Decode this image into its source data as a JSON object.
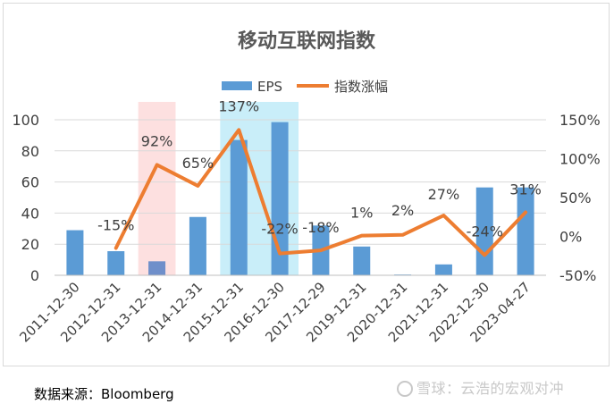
{
  "chart_data": {
    "type": "bar+line",
    "title": "移动互联网指数",
    "categories": [
      "2011-12-30",
      "2012-12-31",
      "2013-12-31",
      "2014-12-31",
      "2015-12-31",
      "2016-12-30",
      "2017-12-29",
      "2019-12-31",
      "2020-12-31",
      "2021-12-31",
      "2022-12-30",
      "2023-04-27"
    ],
    "series": [
      {
        "name": "EPS",
        "kind": "bar",
        "axis": "left",
        "color": "#5b9bd5",
        "values": [
          29,
          15.5,
          9,
          37.5,
          87,
          98.5,
          32,
          18.5,
          0.5,
          7,
          56.5,
          56.5
        ]
      },
      {
        "name": "指数涨幅",
        "kind": "line",
        "axis": "right",
        "color": "#ed7d31",
        "values": [
          null,
          -15,
          92,
          65,
          137,
          -22,
          -18,
          1,
          2,
          27,
          -24,
          31
        ],
        "labels": [
          "",
          "-15%",
          "92%",
          "65%",
          "137%",
          "-22%",
          "-18%",
          "1%",
          "2%",
          "27%",
          "-24%",
          "31%"
        ]
      }
    ],
    "left_axis": {
      "min": 0,
      "max": 100,
      "ticks": [
        "0",
        "20",
        "40",
        "60",
        "80",
        "100"
      ]
    },
    "right_axis": {
      "min": -50,
      "max": 150,
      "ticks": [
        "-50%",
        "0%",
        "50%",
        "100%",
        "150%"
      ]
    },
    "highlights": [
      {
        "category_index": 2,
        "color": "#fde0e0"
      },
      {
        "category_index_start": 4,
        "category_index_end": 5,
        "color": "#c9eef9"
      }
    ],
    "highlighted_bar_color": "#6f8fca",
    "legend_position": "top",
    "grid": true
  },
  "source_note": "数据来源：Bloomberg",
  "watermark": "雪球：云浩的宏观对冲"
}
